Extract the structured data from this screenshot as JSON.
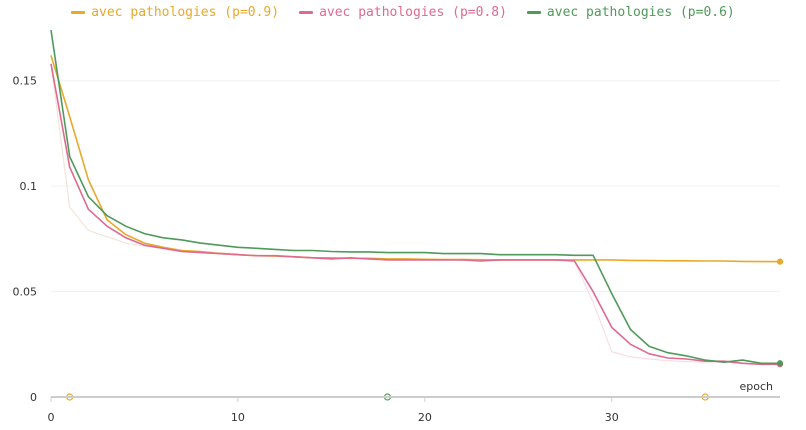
{
  "chart_data": {
    "type": "line",
    "xlabel": "epoch",
    "ylabel": "",
    "xlim": [
      0,
      39
    ],
    "ylim": [
      0,
      0.175
    ],
    "x_ticks": [
      0,
      10,
      20,
      30
    ],
    "y_ticks": [
      0,
      0.05,
      0.1,
      0.15
    ],
    "x_tick_labels": [
      "0",
      "10",
      "20",
      "30"
    ],
    "y_tick_labels": [
      "0",
      "0.05",
      "0.1",
      "0.15"
    ],
    "grid": true,
    "legend_position": "top-center",
    "series": [
      {
        "name": "avec pathologies (p=0.9)",
        "color": "#e8a92a",
        "x": [
          0,
          1,
          2,
          3,
          4,
          5,
          6,
          7,
          8,
          9,
          10,
          11,
          12,
          13,
          14,
          15,
          16,
          17,
          18,
          19,
          20,
          21,
          22,
          23,
          24,
          25,
          26,
          27,
          28,
          29,
          30,
          31,
          32,
          33,
          34,
          35,
          36,
          37,
          38,
          39
        ],
        "values": [
          0.162,
          0.133,
          0.103,
          0.084,
          0.077,
          0.073,
          0.071,
          0.0695,
          0.069,
          0.068,
          0.0675,
          0.067,
          0.0668,
          0.0665,
          0.066,
          0.066,
          0.0658,
          0.0658,
          0.0655,
          0.0655,
          0.0653,
          0.0652,
          0.0652,
          0.0651,
          0.065,
          0.065,
          0.065,
          0.065,
          0.065,
          0.065,
          0.065,
          0.0648,
          0.0647,
          0.0646,
          0.0646,
          0.0645,
          0.0645,
          0.0643,
          0.0642,
          0.0642
        ],
        "hollow_markers_x": [
          1,
          35
        ]
      },
      {
        "name": "avec pathologies (p=0.8)",
        "color": "#de6a8e",
        "x": [
          0,
          1,
          2,
          3,
          4,
          5,
          6,
          7,
          8,
          9,
          10,
          11,
          12,
          13,
          14,
          15,
          16,
          17,
          18,
          19,
          20,
          21,
          22,
          23,
          24,
          25,
          26,
          27,
          28,
          29,
          30,
          31,
          32,
          33,
          34,
          35,
          36,
          37,
          38,
          39
        ],
        "values": [
          0.158,
          0.109,
          0.089,
          0.081,
          0.0755,
          0.072,
          0.0705,
          0.069,
          0.0685,
          0.068,
          0.0675,
          0.067,
          0.067,
          0.0665,
          0.066,
          0.0655,
          0.066,
          0.0655,
          0.065,
          0.065,
          0.065,
          0.065,
          0.065,
          0.0645,
          0.065,
          0.065,
          0.065,
          0.065,
          0.0645,
          0.05,
          0.033,
          0.025,
          0.0205,
          0.0185,
          0.018,
          0.017,
          0.017,
          0.016,
          0.0155,
          0.0155
        ],
        "hollow_markers_x": []
      },
      {
        "name": "avec pathologies (p=0.6)",
        "color": "#4f9a5a",
        "x": [
          0,
          1,
          2,
          3,
          4,
          5,
          6,
          7,
          8,
          9,
          10,
          11,
          12,
          13,
          14,
          15,
          16,
          17,
          18,
          19,
          20,
          21,
          22,
          23,
          24,
          25,
          26,
          27,
          28,
          29,
          30,
          31,
          32,
          33,
          34,
          35,
          36,
          37,
          38,
          39
        ],
        "values": [
          0.174,
          0.114,
          0.095,
          0.086,
          0.081,
          0.0775,
          0.0755,
          0.0745,
          0.073,
          0.072,
          0.071,
          0.0705,
          0.07,
          0.0695,
          0.0695,
          0.069,
          0.0688,
          0.0688,
          0.0685,
          0.0685,
          0.0685,
          0.068,
          0.068,
          0.068,
          0.0675,
          0.0675,
          0.0675,
          0.0675,
          0.0672,
          0.0672,
          0.049,
          0.032,
          0.024,
          0.021,
          0.0195,
          0.0175,
          0.0165,
          0.0175,
          0.016,
          0.016
        ],
        "hollow_markers_x": [
          18
        ]
      }
    ],
    "faint_lines": [
      {
        "color": "#f3e4da",
        "x": [
          0,
          1,
          2,
          3,
          4,
          5,
          6,
          7,
          8,
          9,
          10
        ],
        "values": [
          0.158,
          0.09,
          0.079,
          0.076,
          0.073,
          0.0715,
          0.0705,
          0.0695,
          0.069,
          0.0685,
          0.068
        ]
      },
      {
        "color": "#f8dde6",
        "x": [
          27,
          28,
          29,
          30,
          31,
          32,
          33,
          34,
          35,
          36,
          37,
          38,
          39
        ],
        "values": [
          0.065,
          0.0645,
          0.045,
          0.0215,
          0.019,
          0.018,
          0.0172,
          0.0168,
          0.0165,
          0.0165,
          0.016,
          0.0158,
          0.0155
        ]
      }
    ]
  }
}
